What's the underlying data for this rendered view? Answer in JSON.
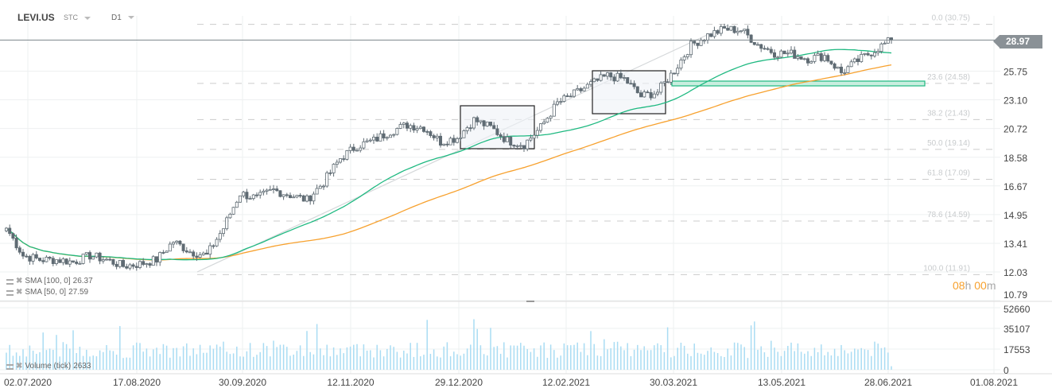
{
  "header": {
    "symbol": "LEVI.US",
    "type": "STC",
    "timeframe": "D1"
  },
  "indicators": [
    {
      "label": "SMA [100,  0]",
      "value": "26.37",
      "color": "#f7a12e"
    },
    {
      "label": "SMA [50,  0]",
      "value": "27.59",
      "color": "#1fb981"
    }
  ],
  "volume_legend": {
    "label": "Volume  (tick)",
    "value": "2633"
  },
  "timer": {
    "hours": "08",
    "h": "h",
    "minutes": "00",
    "m": "m"
  },
  "current_price": "28.97",
  "chart_data": {
    "type": "candlestick",
    "price_axis": {
      "scale": "log",
      "ticks": [
        "25.75",
        "23.10",
        "20.72",
        "18.58",
        "16.67",
        "14.95",
        "13.41",
        "12.03",
        "10.79"
      ]
    },
    "volume_axis": {
      "ticks": [
        "52660",
        "35107",
        "17553",
        "0"
      ],
      "max": 52660
    },
    "date_ticks": [
      "02.07.2020",
      "17.08.2020",
      "30.09.2020",
      "12.11.2020",
      "29.12.2020",
      "12.02.2021",
      "30.03.2021",
      "13.05.2021",
      "28.06.2021",
      "01.08.2021"
    ],
    "weekly_close_approx": [
      14.2,
      12.8,
      12.6,
      12.6,
      12.5,
      12.8,
      12.6,
      12.3,
      12.4,
      12.6,
      13.5,
      13.0,
      12.8,
      14.2,
      16.2,
      15.9,
      16.4,
      16.1,
      15.8,
      16.9,
      18.5,
      19.4,
      19.8,
      20.5,
      21.0,
      20.8,
      19.7,
      20.0,
      21.4,
      20.8,
      19.8,
      19.5,
      20.8,
      22.8,
      23.6,
      24.5,
      25.3,
      25.0,
      23.4,
      23.8,
      25.8,
      28.4,
      29.5,
      30.2,
      30.1,
      28.5,
      27.6,
      27.5,
      27.0,
      27.3,
      25.6,
      26.8,
      27.9,
      28.97
    ],
    "fibonacci": [
      {
        "label": "0.0 (30.75)",
        "price": 30.75
      },
      {
        "label": "23.6 (24.58)",
        "price": 24.58
      },
      {
        "label": "38.2 (21.43)",
        "price": 21.43
      },
      {
        "label": "50.0 (19.14)",
        "price": 19.14
      },
      {
        "label": "61.8 (17.09)",
        "price": 17.09
      },
      {
        "label": "78.6 (14.59)",
        "price": 14.59
      },
      {
        "label": "100.0 (11.91)",
        "price": 11.91
      }
    ],
    "series": [
      {
        "name": "SMA [100,  0]",
        "last": 26.37
      },
      {
        "name": "SMA [50,  0]",
        "last": 27.59
      }
    ],
    "colors": {
      "up": "#ffffff",
      "down": "#5f6b73",
      "outline": "#5f6b73",
      "volume": "#a9dcf3",
      "sma50": "#1fb981",
      "sma100": "#f7a12e",
      "zone": "#1fb981"
    }
  }
}
